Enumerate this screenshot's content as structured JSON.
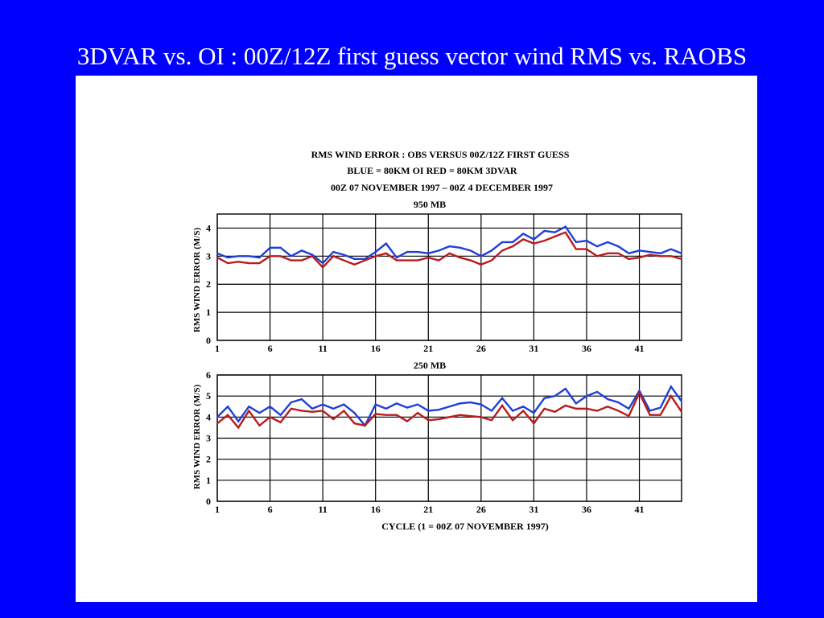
{
  "slide": {
    "title": "3DVAR vs. OI : 00Z/12Z first guess vector wind RMS vs. RAOBS"
  },
  "figure": {
    "header_lines": [
      "RMS  WIND ERROR : OBS VERSUS 00Z/12Z FIRST GUESS",
      "BLUE = 80KM OI    RED = 80KM 3DVAR",
      "00Z 07 NOVEMBER 1997 – 00Z 4 DECEMBER 1997"
    ],
    "xlabel": "CYCLE (1 = 00Z 07 NOVEMBER 1997)"
  },
  "colors": {
    "background": "#0000ff",
    "oi_series": "#1f3fd8",
    "var3d_series": "#b81c1c"
  },
  "chart_data": [
    {
      "type": "line",
      "title": "950 MB",
      "ylabel": "RMS WIND ERROR (M/S)",
      "xlabel": "",
      "x": [
        1,
        2,
        3,
        4,
        5,
        6,
        7,
        8,
        9,
        10,
        11,
        12,
        13,
        14,
        15,
        16,
        17,
        18,
        19,
        20,
        21,
        22,
        23,
        24,
        25,
        26,
        27,
        28,
        29,
        30,
        31,
        32,
        33,
        34,
        35,
        36,
        37,
        38,
        39,
        40,
        41,
        42,
        43,
        44,
        45
      ],
      "xticks": [
        1,
        6,
        11,
        16,
        21,
        26,
        31,
        36,
        41
      ],
      "xlim": [
        1,
        45
      ],
      "ylim": [
        0,
        4.5
      ],
      "yticks": [
        0,
        1,
        2,
        3,
        4
      ],
      "grid": true,
      "series": [
        {
          "name": "BLUE = 80KM OI",
          "color": "#1f3fd8",
          "values": [
            3.1,
            2.95,
            3.0,
            3.0,
            2.95,
            3.3,
            3.3,
            3.0,
            3.2,
            3.05,
            2.75,
            3.15,
            3.05,
            2.9,
            2.9,
            3.15,
            3.45,
            2.95,
            3.15,
            3.15,
            3.1,
            3.2,
            3.35,
            3.3,
            3.2,
            3.0,
            3.2,
            3.5,
            3.5,
            3.8,
            3.6,
            3.9,
            3.85,
            4.05,
            3.5,
            3.55,
            3.35,
            3.5,
            3.35,
            3.1,
            3.2,
            3.15,
            3.1,
            3.25,
            3.1
          ]
        },
        {
          "name": "RED = 80KM 3DVAR",
          "color": "#b81c1c",
          "values": [
            2.95,
            2.75,
            2.8,
            2.75,
            2.75,
            3.0,
            3.0,
            2.85,
            2.85,
            3.0,
            2.6,
            3.0,
            2.85,
            2.7,
            2.85,
            3.0,
            3.1,
            2.85,
            2.85,
            2.85,
            2.95,
            2.85,
            3.1,
            2.95,
            2.85,
            2.7,
            2.85,
            3.2,
            3.35,
            3.6,
            3.45,
            3.55,
            3.7,
            3.85,
            3.25,
            3.25,
            3.0,
            3.1,
            3.1,
            2.9,
            2.95,
            3.05,
            3.0,
            3.0,
            2.9
          ]
        }
      ]
    },
    {
      "type": "line",
      "title": "250 MB",
      "ylabel": "RMS WIND ERROR (M/S)",
      "xlabel": "CYCLE (1 = 00Z 07 NOVEMBER 1997)",
      "x": [
        1,
        2,
        3,
        4,
        5,
        6,
        7,
        8,
        9,
        10,
        11,
        12,
        13,
        14,
        15,
        16,
        17,
        18,
        19,
        20,
        21,
        22,
        23,
        24,
        25,
        26,
        27,
        28,
        29,
        30,
        31,
        32,
        33,
        34,
        35,
        36,
        37,
        38,
        39,
        40,
        41,
        42,
        43,
        44,
        45
      ],
      "xticks": [
        1,
        6,
        11,
        16,
        21,
        26,
        31,
        36,
        41
      ],
      "xlim": [
        1,
        45
      ],
      "ylim": [
        0,
        6
      ],
      "yticks": [
        0,
        1,
        2,
        3,
        4,
        5,
        6
      ],
      "grid": true,
      "series": [
        {
          "name": "BLUE = 80KM OI",
          "color": "#1f3fd8",
          "values": [
            4.0,
            4.5,
            3.8,
            4.5,
            4.2,
            4.5,
            4.1,
            4.7,
            4.85,
            4.4,
            4.6,
            4.4,
            4.6,
            4.2,
            3.6,
            4.6,
            4.4,
            4.65,
            4.45,
            4.6,
            4.3,
            4.35,
            4.5,
            4.65,
            4.7,
            4.6,
            4.3,
            4.9,
            4.3,
            4.5,
            4.2,
            4.9,
            5.0,
            5.35,
            4.65,
            5.0,
            5.2,
            4.85,
            4.7,
            4.4,
            5.25,
            4.3,
            4.45,
            5.45,
            4.75
          ]
        },
        {
          "name": "RED = 80KM 3DVAR",
          "color": "#b81c1c",
          "values": [
            3.7,
            4.1,
            3.5,
            4.3,
            3.6,
            4.0,
            3.75,
            4.4,
            4.3,
            4.25,
            4.3,
            3.9,
            4.3,
            3.7,
            3.6,
            4.15,
            4.1,
            4.1,
            3.8,
            4.2,
            3.85,
            3.9,
            4.0,
            4.1,
            4.05,
            4.0,
            3.85,
            4.55,
            3.85,
            4.3,
            3.7,
            4.4,
            4.25,
            4.55,
            4.4,
            4.4,
            4.3,
            4.5,
            4.3,
            4.05,
            5.15,
            4.1,
            4.1,
            5.0,
            4.25
          ]
        }
      ]
    }
  ]
}
